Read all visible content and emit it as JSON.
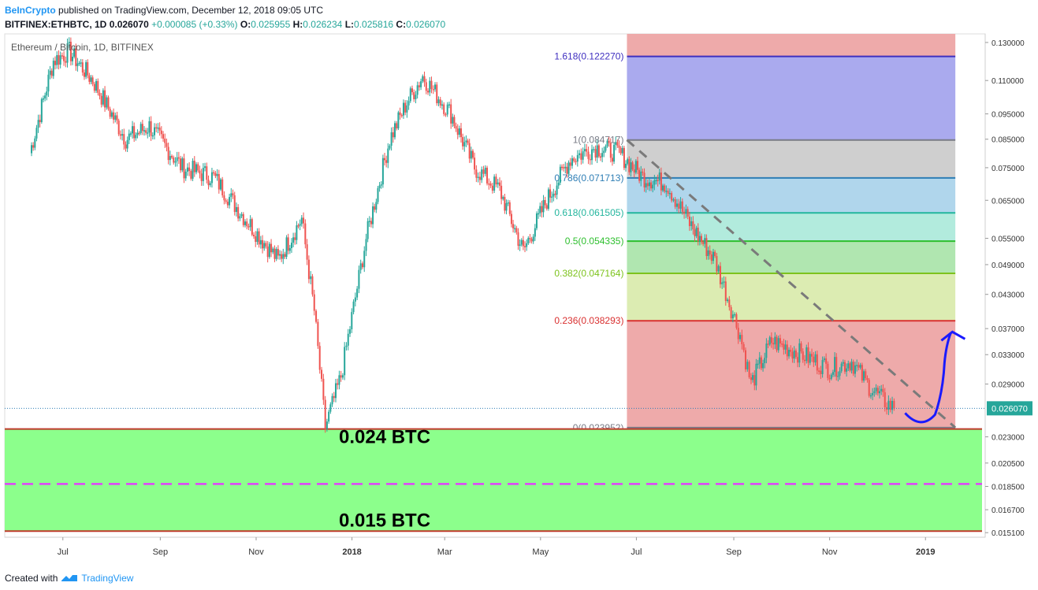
{
  "header": {
    "publisher": "BeInCrypto",
    "published_text": "published on TradingView.com, December 12, 2018 09:05 UTC",
    "symbol": "BITFINEX:ETHBTC, 1D",
    "last": "0.026070",
    "change": "+0.000085 (+0.33%)",
    "o_label": "O:",
    "o": "0.025955",
    "h_label": "H:",
    "h": "0.026234",
    "l_label": "L:",
    "l": "0.025816",
    "c_label": "C:",
    "c": "0.026070"
  },
  "footer": {
    "created_with": "Created with",
    "brand": "TradingView"
  },
  "colors": {
    "up": "#26a69a",
    "down": "#ef5350",
    "zone": "#8cff8c",
    "magenta": "#e040fb",
    "arrow": "#1a1aff"
  },
  "chart_data": {
    "type": "line",
    "title": "Ethereum / Bitcoin, 1D, BITFINEX",
    "x": [
      "2017-06-10",
      "2017-06-25",
      "2017-07-05",
      "2017-07-20",
      "2017-08-10",
      "2017-08-25",
      "2017-09-15",
      "2017-10-05",
      "2017-10-25",
      "2017-11-15",
      "2017-11-30",
      "2017-12-08",
      "2017-12-15",
      "2017-12-25",
      "2018-01-10",
      "2018-01-25",
      "2018-02-05",
      "2018-02-15",
      "2018-03-05",
      "2018-03-20",
      "2018-04-05",
      "2018-04-20",
      "2018-05-05",
      "2018-05-20",
      "2018-06-05",
      "2018-06-20",
      "2018-07-05",
      "2018-07-20",
      "2018-08-05",
      "2018-08-20",
      "2018-09-05",
      "2018-09-12",
      "2018-09-25",
      "2018-10-15",
      "2018-11-01",
      "2018-11-15",
      "2018-11-25",
      "2018-12-05",
      "2018-12-12"
    ],
    "y": [
      0.08,
      0.12,
      0.125,
      0.11,
      0.085,
      0.09,
      0.075,
      0.072,
      0.06,
      0.05,
      0.06,
      0.04,
      0.024,
      0.03,
      0.055,
      0.085,
      0.1,
      0.112,
      0.095,
      0.075,
      0.068,
      0.052,
      0.065,
      0.078,
      0.082,
      0.08,
      0.072,
      0.07,
      0.058,
      0.05,
      0.036,
      0.029,
      0.035,
      0.033,
      0.031,
      0.032,
      0.029,
      0.027,
      0.02607
    ],
    "y_scale": "log",
    "ylim": [
      0.0148,
      0.135
    ],
    "y_ticks": [
      "0.130000",
      "0.110000",
      "0.095000",
      "0.085000",
      "0.075000",
      "0.065000",
      "0.055000",
      "0.049000",
      "0.043000",
      "0.037000",
      "0.033000",
      "0.029000",
      "0.023000",
      "0.020500",
      "0.018500",
      "0.016700",
      "0.015100"
    ],
    "x_ticks": [
      "Jul",
      "Sep",
      "Nov",
      "2018",
      "Mar",
      "May",
      "Jul",
      "Sep",
      "Nov",
      "2019"
    ],
    "last_price_label": "0.026070",
    "fibonacci": [
      {
        "level": "1.618",
        "value": 0.12227,
        "label": "1.618(0.122270)",
        "color": "#3f2fc0",
        "fill": "#aaaaee"
      },
      {
        "level": "1",
        "value": 0.084717,
        "label": "1(0.084717)",
        "color": "#787b86",
        "fill": "#cfcfcf"
      },
      {
        "level": "0.786",
        "value": 0.071713,
        "label": "0.786(0.071713)",
        "color": "#2e7eb5",
        "fill": "#b0d6ec"
      },
      {
        "level": "0.618",
        "value": 0.061505,
        "label": "0.618(0.061505)",
        "color": "#22b59d",
        "fill": "#b2ebdd"
      },
      {
        "level": "0.5",
        "value": 0.054335,
        "label": "0.5(0.054335)",
        "color": "#2ebf2e",
        "fill": "#b0e6b0"
      },
      {
        "level": "0.382",
        "value": 0.047164,
        "label": "0.382(0.047164)",
        "color": "#7dc31d",
        "fill": "#dcecb2"
      },
      {
        "level": "0.236",
        "value": 0.038293,
        "label": "0.236(0.038293)",
        "color": "#d93030",
        "fill": "#eeaaaa"
      },
      {
        "level": "0",
        "value": 0.023952,
        "label": "0(0.023952)",
        "color": "#787b86",
        "fill": "#eeaaaa"
      }
    ],
    "support_zone": {
      "top": 0.0238,
      "bottom": 0.0152,
      "mid_dashed": 0.0187
    },
    "annotations": [
      "0.024 BTC",
      "0.015 BTC"
    ]
  }
}
